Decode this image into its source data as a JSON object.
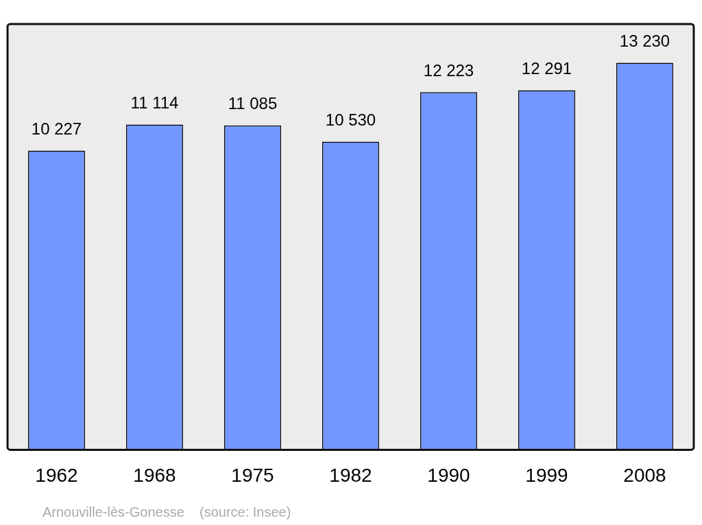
{
  "chart_data": {
    "type": "bar",
    "categories": [
      "1962",
      "1968",
      "1975",
      "1982",
      "1990",
      "1999",
      "2008"
    ],
    "values": [
      10227,
      11114,
      11085,
      10530,
      12223,
      12291,
      13230
    ],
    "value_labels": [
      "10 227",
      "11 114",
      "11 085",
      "10 530",
      "12 223",
      "12 291",
      "13 230"
    ],
    "color": "#7297ff",
    "grid": false,
    "legend": false,
    "annotations": [
      "Arnouville-lès-Gonesse    (source: Insee)"
    ]
  }
}
